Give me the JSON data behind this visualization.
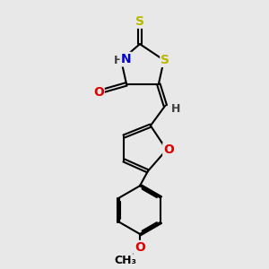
{
  "background_color": "#e8e8e8",
  "bond_color": "#000000",
  "bond_width": 1.5,
  "atom_colors": {
    "S": "#b8b800",
    "N": "#0000cc",
    "O": "#dd0000",
    "C": "#000000",
    "H": "#404040"
  },
  "font_size_atom": 10,
  "font_size_h": 9
}
